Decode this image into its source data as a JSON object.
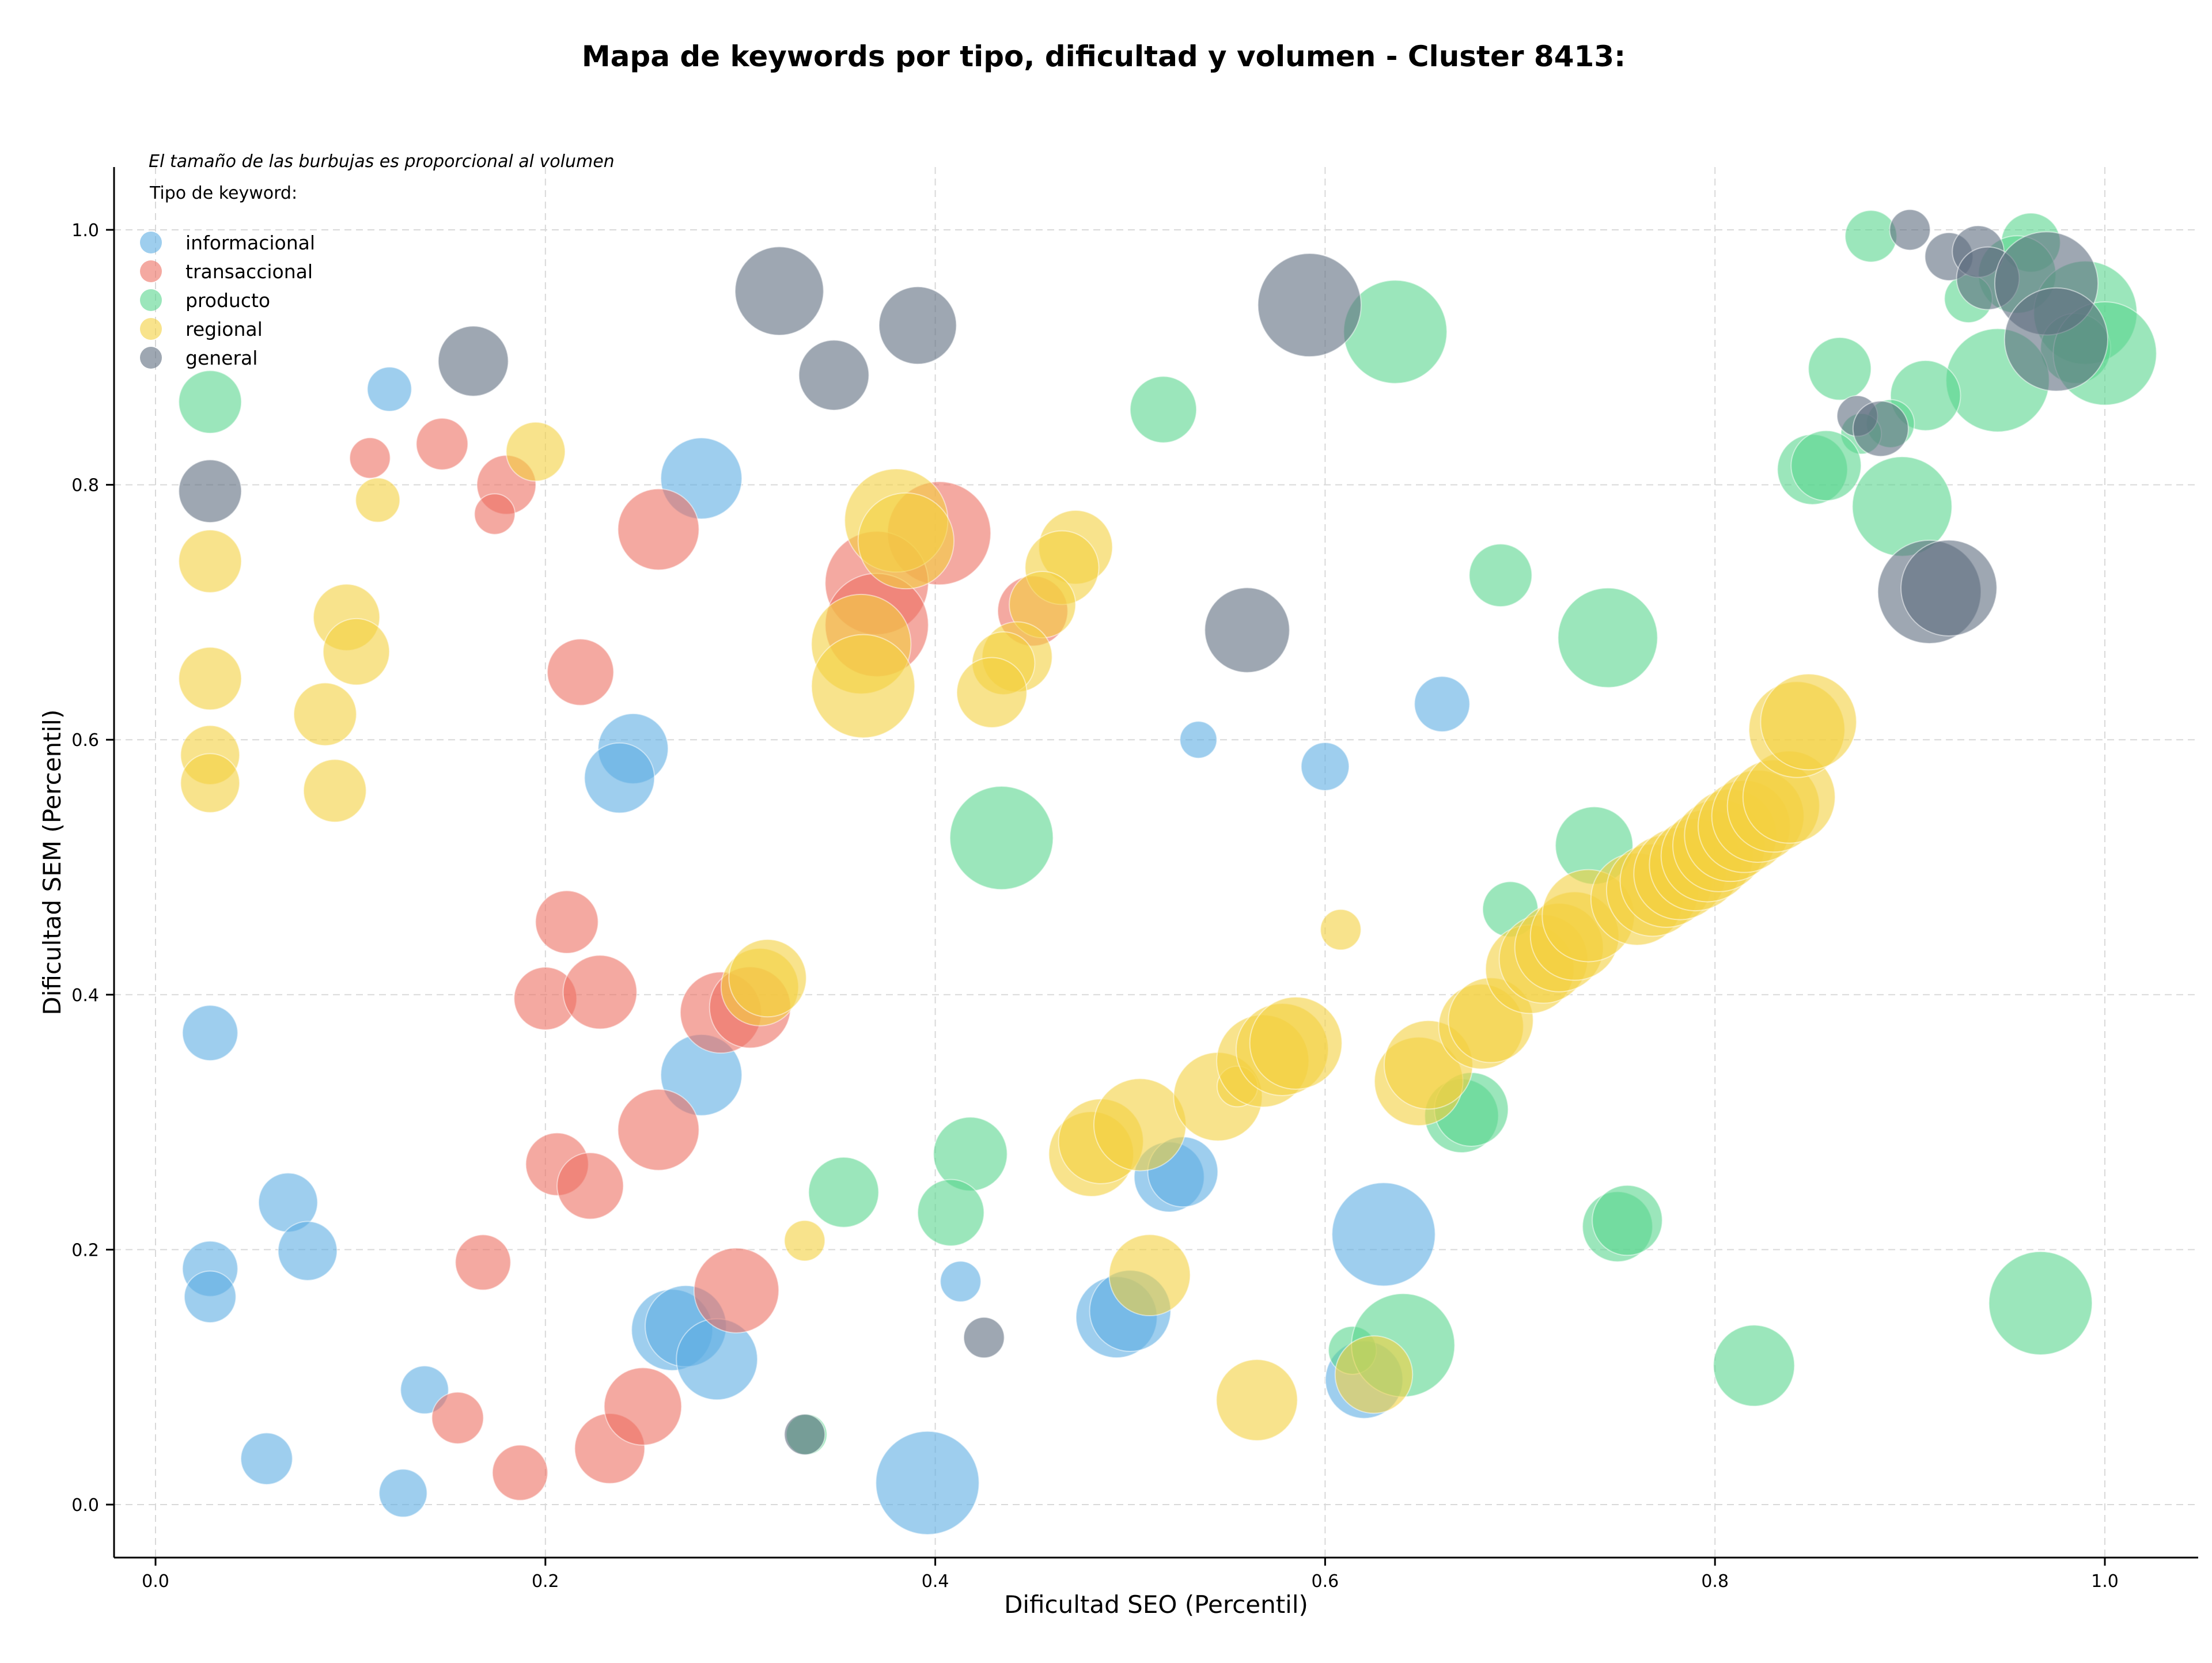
{
  "chart_data": {
    "type": "scatter",
    "title": "Mapa de keywords por tipo, dificultad y volumen - Cluster 8413:",
    "xlabel": "Dificultad SEO (Percentil)",
    "ylabel": "Dificultad SEM (Percentil)",
    "xlim": [
      -0.02,
      1.05
    ],
    "ylim": [
      -0.04,
      1.05
    ],
    "grid": true,
    "x_ticks": [
      "0.0",
      "0.2",
      "0.4",
      "0.6",
      "0.8",
      "1.0"
    ],
    "y_ticks": [
      "0.0",
      "0.2",
      "0.4",
      "0.6",
      "0.8",
      "1.0"
    ],
    "annotation": "El tamaño de las burbujas es proporcional al volumen",
    "legend_title": "Tipo de keyword:",
    "legend_position": "top-left",
    "series": [
      {
        "name": "informacional",
        "color": "#5dade2",
        "points": [
          {
            "x": 0.12,
            "y": 0.875,
            "size": 12
          },
          {
            "x": 0.28,
            "y": 0.805,
            "size": 22
          },
          {
            "x": 0.245,
            "y": 0.593,
            "size": 19
          },
          {
            "x": 0.238,
            "y": 0.57,
            "size": 19
          },
          {
            "x": 0.028,
            "y": 0.37,
            "size": 15
          },
          {
            "x": 0.28,
            "y": 0.337,
            "size": 22
          },
          {
            "x": 0.028,
            "y": 0.185,
            "size": 15
          },
          {
            "x": 0.028,
            "y": 0.163,
            "size": 14
          },
          {
            "x": 0.068,
            "y": 0.237,
            "size": 16
          },
          {
            "x": 0.078,
            "y": 0.199,
            "size": 16
          },
          {
            "x": 0.138,
            "y": 0.09,
            "size": 13
          },
          {
            "x": 0.057,
            "y": 0.036,
            "size": 14
          },
          {
            "x": 0.127,
            "y": 0.009,
            "size": 13
          },
          {
            "x": 0.265,
            "y": 0.137,
            "size": 22
          },
          {
            "x": 0.272,
            "y": 0.14,
            "size": 22
          },
          {
            "x": 0.288,
            "y": 0.114,
            "size": 22
          },
          {
            "x": 0.396,
            "y": 0.017,
            "size": 28
          },
          {
            "x": 0.413,
            "y": 0.175,
            "size": 11
          },
          {
            "x": 0.493,
            "y": 0.147,
            "size": 22
          },
          {
            "x": 0.5,
            "y": 0.152,
            "size": 22
          },
          {
            "x": 0.52,
            "y": 0.257,
            "size": 19
          },
          {
            "x": 0.527,
            "y": 0.261,
            "size": 19
          },
          {
            "x": 0.535,
            "y": 0.6,
            "size": 10
          },
          {
            "x": 0.6,
            "y": 0.579,
            "size": 13
          },
          {
            "x": 0.66,
            "y": 0.628,
            "size": 15
          },
          {
            "x": 0.63,
            "y": 0.212,
            "size": 28
          },
          {
            "x": 0.62,
            "y": 0.098,
            "size": 21
          }
        ]
      },
      {
        "name": "transaccional",
        "color": "#ec7063",
        "points": [
          {
            "x": 0.11,
            "y": 0.821,
            "size": 11
          },
          {
            "x": 0.147,
            "y": 0.832,
            "size": 14
          },
          {
            "x": 0.18,
            "y": 0.8,
            "size": 16
          },
          {
            "x": 0.174,
            "y": 0.777,
            "size": 11
          },
          {
            "x": 0.258,
            "y": 0.765,
            "size": 22
          },
          {
            "x": 0.402,
            "y": 0.762,
            "size": 28
          },
          {
            "x": 0.37,
            "y": 0.723,
            "size": 28
          },
          {
            "x": 0.37,
            "y": 0.69,
            "size": 28
          },
          {
            "x": 0.45,
            "y": 0.701,
            "size": 19
          },
          {
            "x": 0.218,
            "y": 0.653,
            "size": 18
          },
          {
            "x": 0.211,
            "y": 0.457,
            "size": 17
          },
          {
            "x": 0.2,
            "y": 0.397,
            "size": 17
          },
          {
            "x": 0.228,
            "y": 0.402,
            "size": 20
          },
          {
            "x": 0.29,
            "y": 0.386,
            "size": 22
          },
          {
            "x": 0.305,
            "y": 0.39,
            "size": 22
          },
          {
            "x": 0.258,
            "y": 0.294,
            "size": 22
          },
          {
            "x": 0.206,
            "y": 0.267,
            "size": 17
          },
          {
            "x": 0.223,
            "y": 0.25,
            "size": 18
          },
          {
            "x": 0.168,
            "y": 0.19,
            "size": 15
          },
          {
            "x": 0.298,
            "y": 0.168,
            "size": 23
          },
          {
            "x": 0.155,
            "y": 0.068,
            "size": 14
          },
          {
            "x": 0.187,
            "y": 0.025,
            "size": 15
          },
          {
            "x": 0.233,
            "y": 0.044,
            "size": 19
          },
          {
            "x": 0.25,
            "y": 0.077,
            "size": 21
          }
        ]
      },
      {
        "name": "producto",
        "color": "#58d68d",
        "points": [
          {
            "x": 0.028,
            "y": 0.865,
            "size": 17
          },
          {
            "x": 0.517,
            "y": 0.859,
            "size": 18
          },
          {
            "x": 0.636,
            "y": 0.92,
            "size": 28
          },
          {
            "x": 0.434,
            "y": 0.523,
            "size": 28
          },
          {
            "x": 0.69,
            "y": 0.729,
            "size": 17
          },
          {
            "x": 0.745,
            "y": 0.68,
            "size": 27
          },
          {
            "x": 0.738,
            "y": 0.517,
            "size": 21
          },
          {
            "x": 0.695,
            "y": 0.467,
            "size": 15
          },
          {
            "x": 0.67,
            "y": 0.305,
            "size": 20
          },
          {
            "x": 0.675,
            "y": 0.31,
            "size": 20
          },
          {
            "x": 0.418,
            "y": 0.275,
            "size": 20
          },
          {
            "x": 0.408,
            "y": 0.229,
            "size": 18
          },
          {
            "x": 0.353,
            "y": 0.245,
            "size": 19
          },
          {
            "x": 0.334,
            "y": 0.055,
            "size": 11
          },
          {
            "x": 0.614,
            "y": 0.121,
            "size": 13
          },
          {
            "x": 0.64,
            "y": 0.125,
            "size": 28
          },
          {
            "x": 0.75,
            "y": 0.218,
            "size": 19
          },
          {
            "x": 0.755,
            "y": 0.223,
            "size": 19
          },
          {
            "x": 0.82,
            "y": 0.109,
            "size": 22
          },
          {
            "x": 0.967,
            "y": 0.158,
            "size": 28
          },
          {
            "x": 0.88,
            "y": 0.995,
            "size": 14
          },
          {
            "x": 0.962,
            "y": 0.99,
            "size": 16
          },
          {
            "x": 0.955,
            "y": 0.965,
            "size": 21
          },
          {
            "x": 0.93,
            "y": 0.946,
            "size": 13
          },
          {
            "x": 0.99,
            "y": 0.935,
            "size": 28
          },
          {
            "x": 0.985,
            "y": 0.907,
            "size": 19
          },
          {
            "x": 1.0,
            "y": 0.903,
            "size": 28
          },
          {
            "x": 0.864,
            "y": 0.891,
            "size": 17
          },
          {
            "x": 0.945,
            "y": 0.882,
            "size": 28
          },
          {
            "x": 0.908,
            "y": 0.87,
            "size": 19
          },
          {
            "x": 0.89,
            "y": 0.848,
            "size": 13
          },
          {
            "x": 0.875,
            "y": 0.84,
            "size": 11
          },
          {
            "x": 0.85,
            "y": 0.812,
            "size": 19
          },
          {
            "x": 0.857,
            "y": 0.815,
            "size": 19
          },
          {
            "x": 0.896,
            "y": 0.783,
            "size": 27
          }
        ]
      },
      {
        "name": "regional",
        "color": "#f4d03f",
        "points": [
          {
            "x": 0.195,
            "y": 0.826,
            "size": 16
          },
          {
            "x": 0.114,
            "y": 0.788,
            "size": 12
          },
          {
            "x": 0.028,
            "y": 0.74,
            "size": 17
          },
          {
            "x": 0.098,
            "y": 0.696,
            "size": 18
          },
          {
            "x": 0.103,
            "y": 0.669,
            "size": 18
          },
          {
            "x": 0.028,
            "y": 0.648,
            "size": 17
          },
          {
            "x": 0.087,
            "y": 0.62,
            "size": 17
          },
          {
            "x": 0.028,
            "y": 0.588,
            "size": 16
          },
          {
            "x": 0.028,
            "y": 0.566,
            "size": 16
          },
          {
            "x": 0.092,
            "y": 0.56,
            "size": 17
          },
          {
            "x": 0.38,
            "y": 0.772,
            "size": 28
          },
          {
            "x": 0.385,
            "y": 0.756,
            "size": 26
          },
          {
            "x": 0.362,
            "y": 0.675,
            "size": 27
          },
          {
            "x": 0.363,
            "y": 0.642,
            "size": 28
          },
          {
            "x": 0.472,
            "y": 0.751,
            "size": 20
          },
          {
            "x": 0.465,
            "y": 0.735,
            "size": 20
          },
          {
            "x": 0.455,
            "y": 0.706,
            "size": 18
          },
          {
            "x": 0.442,
            "y": 0.665,
            "size": 19
          },
          {
            "x": 0.435,
            "y": 0.66,
            "size": 17
          },
          {
            "x": 0.429,
            "y": 0.637,
            "size": 19
          },
          {
            "x": 0.31,
            "y": 0.406,
            "size": 21
          },
          {
            "x": 0.314,
            "y": 0.413,
            "size": 21
          },
          {
            "x": 0.333,
            "y": 0.207,
            "size": 11
          },
          {
            "x": 0.608,
            "y": 0.451,
            "size": 11
          },
          {
            "x": 0.48,
            "y": 0.275,
            "size": 23
          },
          {
            "x": 0.485,
            "y": 0.285,
            "size": 23
          },
          {
            "x": 0.505,
            "y": 0.298,
            "size": 25
          },
          {
            "x": 0.51,
            "y": 0.18,
            "size": 22
          },
          {
            "x": 0.565,
            "y": 0.082,
            "size": 22
          },
          {
            "x": 0.625,
            "y": 0.102,
            "size": 21
          },
          {
            "x": 0.545,
            "y": 0.32,
            "size": 24
          },
          {
            "x": 0.555,
            "y": 0.328,
            "size": 11
          },
          {
            "x": 0.568,
            "y": 0.348,
            "size": 25
          },
          {
            "x": 0.578,
            "y": 0.357,
            "size": 25
          },
          {
            "x": 0.585,
            "y": 0.362,
            "size": 25
          },
          {
            "x": 0.648,
            "y": 0.332,
            "size": 24
          },
          {
            "x": 0.653,
            "y": 0.345,
            "size": 24
          },
          {
            "x": 0.68,
            "y": 0.375,
            "size": 23
          },
          {
            "x": 0.685,
            "y": 0.38,
            "size": 23
          },
          {
            "x": 0.705,
            "y": 0.42,
            "size": 24
          },
          {
            "x": 0.712,
            "y": 0.428,
            "size": 24
          },
          {
            "x": 0.72,
            "y": 0.437,
            "size": 24
          },
          {
            "x": 0.728,
            "y": 0.446,
            "size": 24
          },
          {
            "x": 0.735,
            "y": 0.462,
            "size": 25
          },
          {
            "x": 0.76,
            "y": 0.475,
            "size": 25
          },
          {
            "x": 0.768,
            "y": 0.482,
            "size": 25
          },
          {
            "x": 0.775,
            "y": 0.489,
            "size": 25
          },
          {
            "x": 0.782,
            "y": 0.495,
            "size": 25
          },
          {
            "x": 0.79,
            "y": 0.502,
            "size": 25
          },
          {
            "x": 0.796,
            "y": 0.509,
            "size": 25
          },
          {
            "x": 0.802,
            "y": 0.517,
            "size": 25
          },
          {
            "x": 0.808,
            "y": 0.525,
            "size": 25
          },
          {
            "x": 0.815,
            "y": 0.532,
            "size": 25
          },
          {
            "x": 0.822,
            "y": 0.54,
            "size": 25
          },
          {
            "x": 0.83,
            "y": 0.548,
            "size": 25
          },
          {
            "x": 0.838,
            "y": 0.555,
            "size": 25
          },
          {
            "x": 0.842,
            "y": 0.608,
            "size": 26
          },
          {
            "x": 0.848,
            "y": 0.614,
            "size": 26
          }
        ]
      },
      {
        "name": "general",
        "color": "#5d6d7e",
        "points": [
          {
            "x": 0.028,
            "y": 0.795,
            "size": 17
          },
          {
            "x": 0.163,
            "y": 0.897,
            "size": 19
          },
          {
            "x": 0.32,
            "y": 0.952,
            "size": 24
          },
          {
            "x": 0.348,
            "y": 0.886,
            "size": 19
          },
          {
            "x": 0.391,
            "y": 0.925,
            "size": 21
          },
          {
            "x": 0.592,
            "y": 0.941,
            "size": 28
          },
          {
            "x": 0.56,
            "y": 0.686,
            "size": 23
          },
          {
            "x": 0.425,
            "y": 0.131,
            "size": 11
          },
          {
            "x": 0.333,
            "y": 0.055,
            "size": 11
          },
          {
            "x": 0.9,
            "y": 1.0,
            "size": 11
          },
          {
            "x": 0.92,
            "y": 0.979,
            "size": 13
          },
          {
            "x": 0.935,
            "y": 0.983,
            "size": 14
          },
          {
            "x": 0.94,
            "y": 0.962,
            "size": 17
          },
          {
            "x": 0.97,
            "y": 0.958,
            "size": 28
          },
          {
            "x": 0.975,
            "y": 0.914,
            "size": 28
          },
          {
            "x": 0.873,
            "y": 0.854,
            "size": 11
          },
          {
            "x": 0.885,
            "y": 0.844,
            "size": 15
          },
          {
            "x": 0.91,
            "y": 0.716,
            "size": 28
          },
          {
            "x": 0.92,
            "y": 0.719,
            "size": 26
          }
        ]
      }
    ]
  }
}
